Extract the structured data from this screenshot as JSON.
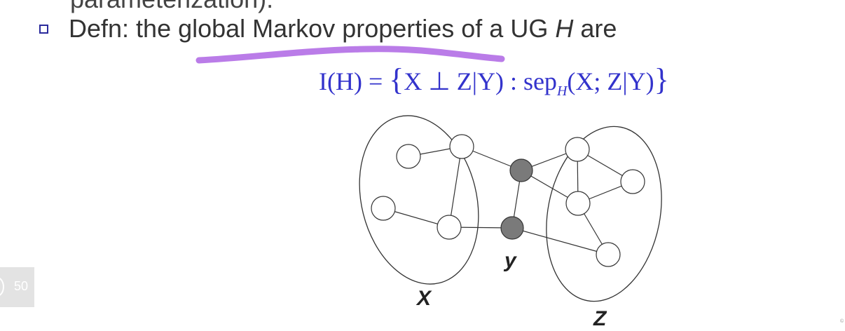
{
  "slide": {
    "cutoff_line": "parameterization).",
    "bullet": {
      "prefix": "Defn: the global Markov properties of a UG ",
      "var": "H",
      "suffix": " are"
    },
    "formula": {
      "lhs": "I(H) = ",
      "open_brace": "{",
      "independence": "X ⊥ Z",
      "cond": "|Y) : sep",
      "sub": "H",
      "sep_args": "(X; Z|Y)",
      "close_brace": "}"
    },
    "graph_labels": {
      "x": "X",
      "y": "y",
      "z": "Z"
    },
    "slide_number": "50",
    "corner_mark": "©",
    "colors": {
      "formula": "#3333cc",
      "highlight": "#b36ee6",
      "separator_node": "#7a7a7a",
      "bullet": "#2a2a9c"
    }
  }
}
